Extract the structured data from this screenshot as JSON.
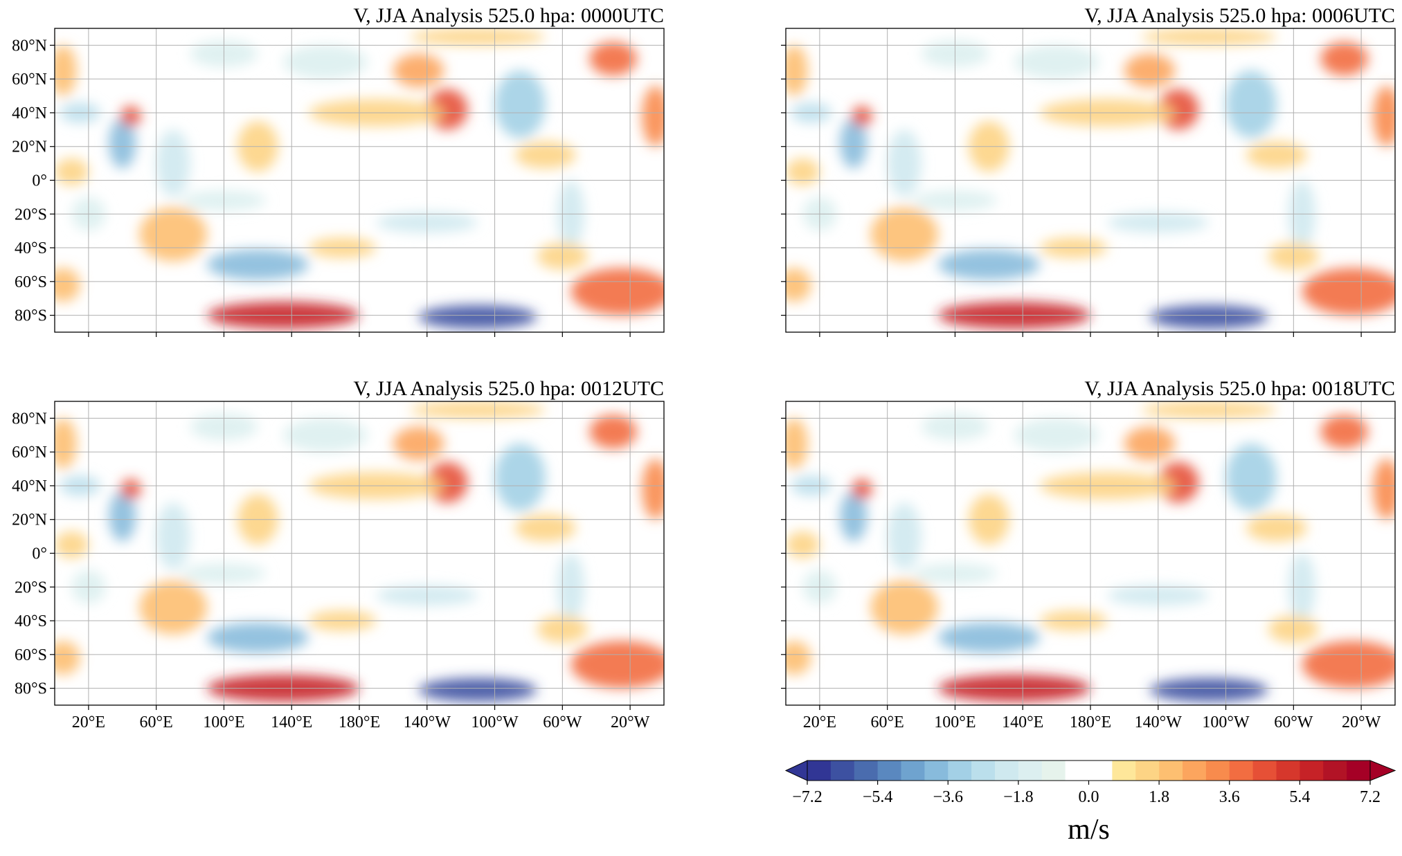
{
  "panels": [
    {
      "title": "V, JJA Analysis 525.0 hpa: 0000UTC"
    },
    {
      "title": "V, JJA Analysis 525.0 hpa: 0006UTC"
    },
    {
      "title": "V, JJA Analysis 525.0 hpa: 0012UTC"
    },
    {
      "title": "V, JJA Analysis 525.0 hpa: 0018UTC"
    }
  ],
  "xlim": [
    0,
    360
  ],
  "ylim": [
    -90,
    90
  ],
  "lat_ticks": [
    {
      "value": 80,
      "label": "80°N"
    },
    {
      "value": 60,
      "label": "60°N"
    },
    {
      "value": 40,
      "label": "40°N"
    },
    {
      "value": 20,
      "label": "20°N"
    },
    {
      "value": 0,
      "label": "0°"
    },
    {
      "value": -20,
      "label": "20°S"
    },
    {
      "value": -40,
      "label": "40°S"
    },
    {
      "value": -60,
      "label": "60°S"
    },
    {
      "value": -80,
      "label": "80°S"
    }
  ],
  "lon_ticks": [
    {
      "value": 20,
      "label": "20°E"
    },
    {
      "value": 60,
      "label": "60°E"
    },
    {
      "value": 100,
      "label": "100°E"
    },
    {
      "value": 140,
      "label": "140°E"
    },
    {
      "value": 180,
      "label": "180°E"
    },
    {
      "value": 220,
      "label": "140°W"
    },
    {
      "value": 260,
      "label": "100°W"
    },
    {
      "value": 300,
      "label": "60°W"
    },
    {
      "value": 340,
      "label": "20°W"
    }
  ],
  "colorbar": {
    "label": "m/s",
    "vlim": [
      -7.2,
      7.2
    ],
    "ticks": [
      {
        "value": -7.2,
        "label": "−7.2"
      },
      {
        "value": -5.4,
        "label": "−5.4"
      },
      {
        "value": -3.6,
        "label": "−3.6"
      },
      {
        "value": -1.8,
        "label": "−1.8"
      },
      {
        "value": 0,
        "label": "0.0"
      },
      1.8,
      3.6,
      5.4,
      7.2
    ],
    "colors": [
      "#313695",
      "#3d51a1",
      "#4a6cae",
      "#5a88bf",
      "#6fa3cf",
      "#88bbdc",
      "#a3d0e6",
      "#bbdfec",
      "#cfe9ef",
      "#dceff0",
      "#e6f3ec",
      "#ffffff",
      "#ffffff",
      "#fee79a",
      "#fdd485",
      "#fdbf71",
      "#fca55e",
      "#f88b4d",
      "#f26d41",
      "#e65036",
      "#d6372c",
      "#c62227",
      "#b21326",
      "#a50026"
    ]
  }
}
